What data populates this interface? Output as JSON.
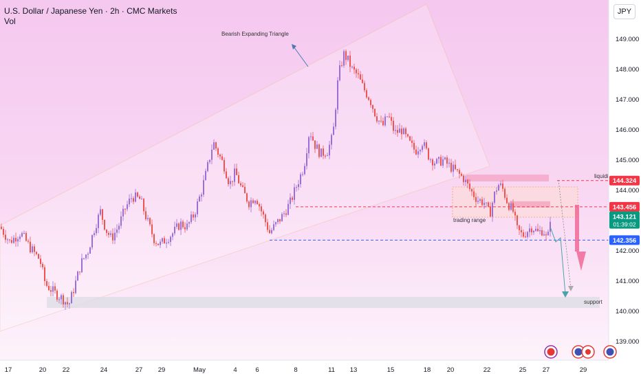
{
  "header": {
    "title": "U.S. Dollar / Japanese Yen · 2h · CMC Markets",
    "volume_label": "Vol"
  },
  "currency_button": "JPY",
  "chart_data": {
    "type": "candlestick",
    "symbol": "USDJPY",
    "interval": "2h",
    "ylim": [
      138.5,
      149.6
    ],
    "y_ticks": [
      "149.000",
      "148.000",
      "147.000",
      "146.000",
      "145.000",
      "144.000",
      "142.000",
      "141.000",
      "140.000",
      "139.000"
    ],
    "x_ticks": [
      "17",
      "20",
      "22",
      "24",
      "27",
      "29",
      "May",
      "4",
      "6",
      "8",
      "11",
      "13",
      "15",
      "18",
      "20",
      "22",
      "25",
      "27",
      "29"
    ],
    "price_path": [
      [
        0,
        142.8
      ],
      [
        14,
        142.3
      ],
      [
        30,
        142.6
      ],
      [
        44,
        142.1
      ],
      [
        58,
        141.7
      ],
      [
        66,
        140.9
      ],
      [
        80,
        140.6
      ],
      [
        92,
        140.4
      ],
      [
        100,
        140.2
      ],
      [
        108,
        140.8
      ],
      [
        118,
        141.6
      ],
      [
        128,
        142.0
      ],
      [
        138,
        142.8
      ],
      [
        146,
        143.3
      ],
      [
        154,
        142.7
      ],
      [
        162,
        142.4
      ],
      [
        172,
        142.8
      ],
      [
        182,
        143.4
      ],
      [
        192,
        143.8
      ],
      [
        204,
        143.7
      ],
      [
        214,
        143.0
      ],
      [
        224,
        142.4
      ],
      [
        232,
        142.2
      ],
      [
        242,
        142.4
      ],
      [
        252,
        142.6
      ],
      [
        262,
        142.9
      ],
      [
        272,
        142.8
      ],
      [
        282,
        143.2
      ],
      [
        292,
        143.9
      ],
      [
        300,
        144.6
      ],
      [
        310,
        145.6
      ],
      [
        318,
        145.2
      ],
      [
        326,
        144.8
      ],
      [
        334,
        144.2
      ],
      [
        342,
        144.6
      ],
      [
        352,
        144.0
      ],
      [
        362,
        143.6
      ],
      [
        372,
        143.8
      ],
      [
        382,
        143.2
      ],
      [
        392,
        142.6
      ],
      [
        402,
        142.9
      ],
      [
        412,
        143.2
      ],
      [
        422,
        143.6
      ],
      [
        432,
        144.2
      ],
      [
        442,
        144.8
      ],
      [
        450,
        146.0
      ],
      [
        458,
        145.5
      ],
      [
        466,
        145.2
      ],
      [
        476,
        145.3
      ],
      [
        484,
        145.8
      ],
      [
        492,
        147.8
      ],
      [
        500,
        148.5
      ],
      [
        506,
        148.3
      ],
      [
        512,
        148.0
      ],
      [
        520,
        147.8
      ],
      [
        528,
        147.4
      ],
      [
        538,
        147.0
      ],
      [
        546,
        146.5
      ],
      [
        556,
        146.1
      ],
      [
        564,
        146.5
      ],
      [
        574,
        145.9
      ],
      [
        584,
        146.0
      ],
      [
        594,
        145.6
      ],
      [
        604,
        145.3
      ],
      [
        614,
        145.6
      ],
      [
        624,
        145.1
      ],
      [
        634,
        144.9
      ],
      [
        644,
        145.0
      ],
      [
        654,
        144.8
      ],
      [
        664,
        144.6
      ],
      [
        674,
        144.4
      ],
      [
        684,
        144.0
      ],
      [
        694,
        143.7
      ],
      [
        704,
        143.6
      ],
      [
        712,
        143.2
      ],
      [
        718,
        143.8
      ],
      [
        724,
        144.2
      ],
      [
        730,
        144.1
      ],
      [
        738,
        143.6
      ],
      [
        746,
        143.3
      ],
      [
        752,
        142.7
      ],
      [
        760,
        142.5
      ],
      [
        768,
        142.7
      ],
      [
        774,
        142.8
      ],
      [
        782,
        142.6
      ],
      [
        790,
        142.7
      ],
      [
        796,
        142.3
      ],
      [
        800,
        143.1
      ]
    ],
    "levels": [
      {
        "label": "144.324",
        "value": 144.324,
        "color": "#f23645",
        "style": "dashed"
      },
      {
        "label": "143.456",
        "value": 143.456,
        "color": "#f23645",
        "style": "dashed"
      },
      {
        "label": "142.356",
        "value": 142.356,
        "color": "#2962ff",
        "style": "dashed"
      }
    ],
    "current_price": {
      "label": "143.121",
      "countdown": "01:39:02",
      "color": "#089981"
    },
    "annotations": {
      "pattern": "Bearish Expanding Triangle",
      "liquidity": "liquidity",
      "trading_range": "trading range",
      "support": "support"
    }
  }
}
